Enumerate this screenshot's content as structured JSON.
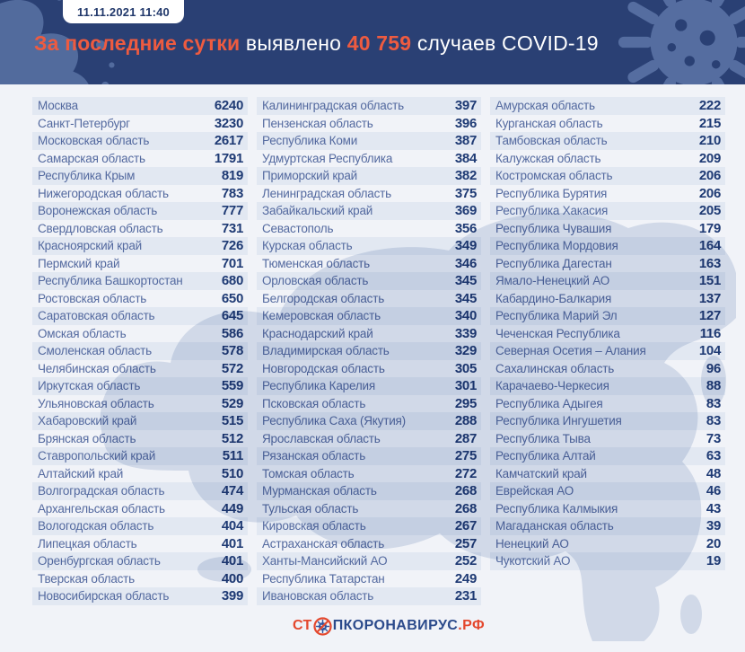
{
  "header": {
    "datetime": "11.11.2021 11:40",
    "title": {
      "highlight1": "За последние сутки",
      "normal1": " выявлено ",
      "highlight2": "40 759",
      "normal2": " случаев COVID-19"
    }
  },
  "footer": {
    "logo_prefix": "СТ",
    "logo_middle": "ПКОРОНАВИРУС",
    "logo_suffix": ".РФ"
  },
  "colors": {
    "header_navy": "#2a4074",
    "accent_orange": "#ee5b40",
    "stripe": "#e2e8f2",
    "region_blue": "#53699f",
    "value_navy": "#1e3a74",
    "logo_red": "#e4482e",
    "logo_navy": "#2b4a8b",
    "decoration_blue": "#5d76a8"
  },
  "chart_data": {
    "type": "table",
    "title": "За последние сутки выявлено 40 759 случаев COVID-19",
    "timestamp": "11.11.2021 11:40",
    "total_new_cases": 40759,
    "columns": [
      {
        "rows": [
          {
            "region": "Москва",
            "value": "6240"
          },
          {
            "region": "Санкт-Петербург",
            "value": "3230"
          },
          {
            "region": "Московская область",
            "value": "2617"
          },
          {
            "region": "Самарская область",
            "value": "1791"
          },
          {
            "region": "Республика Крым",
            "value": "819"
          },
          {
            "region": "Нижегородская область",
            "value": "783"
          },
          {
            "region": "Воронежская область",
            "value": "777"
          },
          {
            "region": "Свердловская область",
            "value": "731"
          },
          {
            "region": "Красноярский край",
            "value": "726"
          },
          {
            "region": "Пермский край",
            "value": "701"
          },
          {
            "region": "Республика Башкортостан",
            "value": "680"
          },
          {
            "region": "Ростовская область",
            "value": "650"
          },
          {
            "region": "Саратовская область",
            "value": "645"
          },
          {
            "region": "Омская область",
            "value": "586"
          },
          {
            "region": "Смоленская область",
            "value": "578"
          },
          {
            "region": "Челябинская область",
            "value": "572"
          },
          {
            "region": "Иркутская область",
            "value": "559"
          },
          {
            "region": "Ульяновская область",
            "value": "529"
          },
          {
            "region": "Хабаровский край",
            "value": "515"
          },
          {
            "region": "Брянская область",
            "value": "512"
          },
          {
            "region": "Ставропольский край",
            "value": "511"
          },
          {
            "region": "Алтайский край",
            "value": "510"
          },
          {
            "region": "Волгоградская область",
            "value": "474"
          },
          {
            "region": "Архангельская область",
            "value": "449"
          },
          {
            "region": "Вологодская область",
            "value": "404"
          },
          {
            "region": "Липецкая область",
            "value": "401"
          },
          {
            "region": "Оренбургская область",
            "value": "401"
          },
          {
            "region": "Тверская область",
            "value": "400"
          },
          {
            "region": "Новосибирская область",
            "value": "399"
          }
        ]
      },
      {
        "rows": [
          {
            "region": "Калининградская область",
            "value": "397"
          },
          {
            "region": "Пензенская область",
            "value": "396"
          },
          {
            "region": "Республика Коми",
            "value": "387"
          },
          {
            "region": "Удмуртская Республика",
            "value": "384"
          },
          {
            "region": "Приморский край",
            "value": "382"
          },
          {
            "region": "Ленинградская область",
            "value": "375"
          },
          {
            "region": "Забайкальский край",
            "value": "369"
          },
          {
            "region": "Севастополь",
            "value": "356"
          },
          {
            "region": "Курская область",
            "value": "349"
          },
          {
            "region": "Тюменская область",
            "value": "346"
          },
          {
            "region": "Орловская область",
            "value": "345"
          },
          {
            "region": "Белгородская область",
            "value": "345"
          },
          {
            "region": "Кемеровская область",
            "value": "340"
          },
          {
            "region": "Краснодарский край",
            "value": "339"
          },
          {
            "region": "Владимирская область",
            "value": "329"
          },
          {
            "region": "Новгородская область",
            "value": "305"
          },
          {
            "region": "Республика Карелия",
            "value": "301"
          },
          {
            "region": "Псковская область",
            "value": "295"
          },
          {
            "region": "Республика Саха (Якутия)",
            "value": "288"
          },
          {
            "region": "Ярославская область",
            "value": "287"
          },
          {
            "region": "Рязанская область",
            "value": "275"
          },
          {
            "region": "Томская область",
            "value": "272"
          },
          {
            "region": "Мурманская область",
            "value": "268"
          },
          {
            "region": "Тульская область",
            "value": "268"
          },
          {
            "region": "Кировская область",
            "value": "267"
          },
          {
            "region": "Астраханская область",
            "value": "257"
          },
          {
            "region": "Ханты-Мансийский АО",
            "value": "252"
          },
          {
            "region": "Республика Татарстан",
            "value": "249"
          },
          {
            "region": "Ивановская область",
            "value": "231"
          }
        ]
      },
      {
        "rows": [
          {
            "region": "Амурская область",
            "value": "222"
          },
          {
            "region": "Курганская область",
            "value": "215"
          },
          {
            "region": "Тамбовская область",
            "value": "210"
          },
          {
            "region": "Калужская область",
            "value": "209"
          },
          {
            "region": "Костромская область",
            "value": "206"
          },
          {
            "region": "Республика Бурятия",
            "value": "206"
          },
          {
            "region": "Республика Хакасия",
            "value": "205"
          },
          {
            "region": "Республика Чувашия",
            "value": "179"
          },
          {
            "region": "Республика Мордовия",
            "value": "164"
          },
          {
            "region": "Республика Дагестан",
            "value": "163"
          },
          {
            "region": "Ямало-Ненецкий АО",
            "value": "151"
          },
          {
            "region": "Кабардино-Балкария",
            "value": "137"
          },
          {
            "region": "Республика Марий Эл",
            "value": "127"
          },
          {
            "region": "Чеченская Республика",
            "value": "116"
          },
          {
            "region": "Северная Осетия – Алания",
            "value": "104"
          },
          {
            "region": "Сахалинская область",
            "value": "96"
          },
          {
            "region": "Карачаево-Черкесия",
            "value": "88"
          },
          {
            "region": "Республика Адыгея",
            "value": "83"
          },
          {
            "region": "Республика Ингушетия",
            "value": "83"
          },
          {
            "region": "Республика Тыва",
            "value": "73"
          },
          {
            "region": "Республика Алтай",
            "value": "63"
          },
          {
            "region": "Камчатский край",
            "value": "48"
          },
          {
            "region": "Еврейская АО",
            "value": "46"
          },
          {
            "region": "Республика Калмыкия",
            "value": "43"
          },
          {
            "region": "Магаданская область",
            "value": "39"
          },
          {
            "region": "Ненецкий АО",
            "value": "20"
          },
          {
            "region": "Чукотский АО",
            "value": "19"
          }
        ]
      }
    ]
  }
}
